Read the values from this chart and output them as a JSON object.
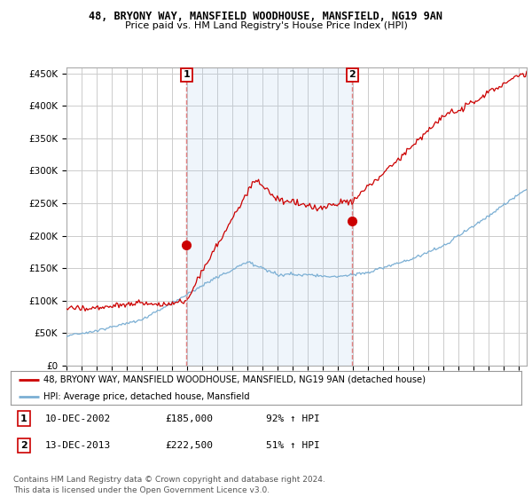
{
  "title": "48, BRYONY WAY, MANSFIELD WOODHOUSE, MANSFIELD, NG19 9AN",
  "subtitle": "Price paid vs. HM Land Registry's House Price Index (HPI)",
  "ylabel_ticks": [
    "£0",
    "£50K",
    "£100K",
    "£150K",
    "£200K",
    "£250K",
    "£300K",
    "£350K",
    "£400K",
    "£450K"
  ],
  "ytick_vals": [
    0,
    50000,
    100000,
    150000,
    200000,
    250000,
    300000,
    350000,
    400000,
    450000
  ],
  "ylim": [
    0,
    460000
  ],
  "xlim_start": 1995.0,
  "xlim_end": 2025.5,
  "sale1_date": 2002.95,
  "sale1_price": 185000,
  "sale2_date": 2013.95,
  "sale2_price": 222500,
  "red_line_color": "#cc0000",
  "blue_line_color": "#7bafd4",
  "shade_color": "#ddeeff",
  "marker_box_color": "#cc0000",
  "vline_color": "#e08080",
  "grid_color": "#cccccc",
  "bg_color": "#ffffff",
  "legend_label_red": "48, BRYONY WAY, MANSFIELD WOODHOUSE, MANSFIELD, NG19 9AN (detached house)",
  "legend_label_blue": "HPI: Average price, detached house, Mansfield",
  "table_row1": [
    "1",
    "10-DEC-2002",
    "£185,000",
    "92% ↑ HPI"
  ],
  "table_row2": [
    "2",
    "13-DEC-2013",
    "£222,500",
    "51% ↑ HPI"
  ],
  "footnote": "Contains HM Land Registry data © Crown copyright and database right 2024.\nThis data is licensed under the Open Government Licence v3.0."
}
